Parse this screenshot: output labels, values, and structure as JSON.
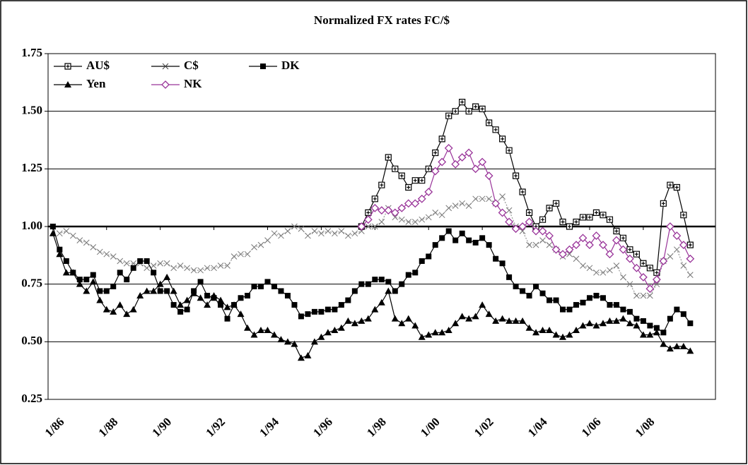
{
  "chart_data": {
    "type": "line",
    "title": "Normalized FX rates FC/$",
    "x": [
      1986,
      1986.25,
      1986.5,
      1986.75,
      1987,
      1987.25,
      1987.5,
      1987.75,
      1988,
      1988.25,
      1988.5,
      1988.75,
      1989,
      1989.25,
      1989.5,
      1989.75,
      1990,
      1990.25,
      1990.5,
      1990.75,
      1991,
      1991.25,
      1991.5,
      1991.75,
      1992,
      1992.25,
      1992.5,
      1992.75,
      1993,
      1993.25,
      1993.5,
      1993.75,
      1994,
      1994.25,
      1994.5,
      1994.75,
      1995,
      1995.25,
      1995.5,
      1995.75,
      1996,
      1996.25,
      1996.5,
      1996.75,
      1997,
      1997.25,
      1997.5,
      1997.75,
      1998,
      1998.25,
      1998.5,
      1998.75,
      1999,
      1999.25,
      1999.5,
      1999.75,
      2000,
      2000.25,
      2000.5,
      2000.75,
      2001,
      2001.25,
      2001.5,
      2001.75,
      2002,
      2002.25,
      2002.5,
      2002.75,
      2003,
      2003.25,
      2003.5,
      2003.75,
      2004,
      2004.25,
      2004.5,
      2004.75,
      2005,
      2005.25,
      2005.5,
      2005.75,
      2006,
      2006.25,
      2006.5,
      2006.75,
      2007,
      2007.25,
      2007.5,
      2007.75,
      2008,
      2008.25,
      2008.5,
      2008.75,
      2009,
      2009.25,
      2009.5,
      2009.75
    ],
    "series": [
      {
        "name": "C$",
        "color": "#444444",
        "marker": "x",
        "dash": "dotted",
        "values": [
          1.0,
          0.97,
          0.98,
          0.96,
          0.94,
          0.93,
          0.91,
          0.89,
          0.88,
          0.87,
          0.85,
          0.84,
          0.84,
          0.84,
          0.82,
          0.83,
          0.84,
          0.84,
          0.82,
          0.83,
          0.82,
          0.81,
          0.81,
          0.82,
          0.82,
          0.83,
          0.83,
          0.87,
          0.88,
          0.88,
          0.91,
          0.92,
          0.94,
          0.97,
          0.96,
          0.98,
          1.0,
          0.99,
          0.96,
          0.98,
          0.97,
          0.98,
          0.97,
          0.98,
          0.96,
          0.97,
          0.98,
          1.0,
          1.0,
          1.02,
          1.08,
          1.04,
          1.03,
          1.02,
          1.02,
          1.03,
          1.04,
          1.06,
          1.05,
          1.08,
          1.09,
          1.1,
          1.09,
          1.12,
          1.12,
          1.12,
          1.1,
          1.13,
          1.07,
          1.0,
          0.98,
          0.92,
          0.92,
          0.94,
          0.92,
          0.9,
          0.87,
          0.88,
          0.86,
          0.83,
          0.82,
          0.8,
          0.8,
          0.81,
          0.83,
          0.78,
          0.75,
          0.7,
          0.7,
          0.7,
          0.75,
          0.85,
          0.87,
          0.9,
          0.83,
          0.79
        ]
      },
      {
        "name": "AU$",
        "color": "#000000",
        "marker": "square-cross",
        "dash": "solid",
        "values": [
          null,
          null,
          null,
          null,
          null,
          null,
          null,
          null,
          null,
          null,
          null,
          null,
          null,
          null,
          null,
          null,
          null,
          null,
          null,
          null,
          null,
          null,
          null,
          null,
          null,
          null,
          null,
          null,
          null,
          null,
          null,
          null,
          null,
          null,
          null,
          null,
          null,
          null,
          null,
          null,
          null,
          null,
          null,
          null,
          null,
          null,
          1.0,
          1.06,
          1.12,
          1.18,
          1.3,
          1.25,
          1.22,
          1.17,
          1.2,
          1.2,
          1.25,
          1.32,
          1.38,
          1.48,
          1.5,
          1.54,
          1.5,
          1.52,
          1.51,
          1.45,
          1.42,
          1.38,
          1.33,
          1.22,
          1.15,
          1.06,
          1.0,
          1.03,
          1.08,
          1.1,
          1.02,
          1.0,
          1.02,
          1.04,
          1.04,
          1.06,
          1.05,
          1.03,
          0.98,
          0.95,
          0.9,
          0.88,
          0.84,
          0.82,
          0.8,
          1.1,
          1.18,
          1.17,
          1.05,
          0.92
        ]
      },
      {
        "name": "DK",
        "color": "#000000",
        "marker": "square",
        "dash": "solid",
        "values": [
          1.0,
          0.9,
          0.85,
          0.8,
          0.77,
          0.77,
          0.79,
          0.72,
          0.72,
          0.74,
          0.8,
          0.77,
          0.82,
          0.85,
          0.85,
          0.8,
          0.72,
          0.72,
          0.66,
          0.63,
          0.64,
          0.72,
          0.76,
          0.7,
          0.69,
          0.66,
          0.6,
          0.66,
          0.69,
          0.7,
          0.74,
          0.74,
          0.76,
          0.74,
          0.72,
          0.7,
          0.66,
          0.61,
          0.62,
          0.63,
          0.63,
          0.64,
          0.64,
          0.66,
          0.68,
          0.72,
          0.75,
          0.75,
          0.77,
          0.77,
          0.76,
          0.72,
          0.75,
          0.79,
          0.8,
          0.85,
          0.87,
          0.92,
          0.95,
          0.98,
          0.94,
          0.97,
          0.94,
          0.93,
          0.95,
          0.92,
          0.86,
          0.84,
          0.78,
          0.74,
          0.72,
          0.7,
          0.74,
          0.71,
          0.68,
          0.68,
          0.64,
          0.64,
          0.66,
          0.67,
          0.69,
          0.7,
          0.69,
          0.66,
          0.66,
          0.64,
          0.63,
          0.6,
          0.59,
          0.57,
          0.56,
          0.54,
          0.6,
          0.64,
          0.62,
          0.58
        ]
      },
      {
        "name": "Yen",
        "color": "#000000",
        "marker": "triangle",
        "dash": "solid",
        "values": [
          0.97,
          0.88,
          0.8,
          0.8,
          0.75,
          0.72,
          0.76,
          0.68,
          0.64,
          0.63,
          0.66,
          0.62,
          0.64,
          0.7,
          0.72,
          0.72,
          0.75,
          0.78,
          0.72,
          0.66,
          0.68,
          0.71,
          0.69,
          0.66,
          0.7,
          0.68,
          0.65,
          0.66,
          0.62,
          0.56,
          0.53,
          0.55,
          0.55,
          0.53,
          0.51,
          0.5,
          0.49,
          0.43,
          0.44,
          0.5,
          0.52,
          0.54,
          0.55,
          0.56,
          0.59,
          0.58,
          0.59,
          0.6,
          0.64,
          0.67,
          0.72,
          0.6,
          0.58,
          0.6,
          0.57,
          0.52,
          0.53,
          0.54,
          0.54,
          0.55,
          0.58,
          0.61,
          0.6,
          0.61,
          0.66,
          0.62,
          0.59,
          0.6,
          0.59,
          0.59,
          0.59,
          0.56,
          0.54,
          0.55,
          0.55,
          0.53,
          0.52,
          0.53,
          0.55,
          0.57,
          0.58,
          0.57,
          0.58,
          0.59,
          0.59,
          0.6,
          0.58,
          0.57,
          0.53,
          0.53,
          0.54,
          0.49,
          0.47,
          0.48,
          0.48,
          0.46
        ]
      },
      {
        "name": "NK",
        "color": "#993399",
        "marker": "diamond",
        "dash": "solid",
        "values": [
          null,
          null,
          null,
          null,
          null,
          null,
          null,
          null,
          null,
          null,
          null,
          null,
          null,
          null,
          null,
          null,
          null,
          null,
          null,
          null,
          null,
          null,
          null,
          null,
          null,
          null,
          null,
          null,
          null,
          null,
          null,
          null,
          null,
          null,
          null,
          null,
          null,
          null,
          null,
          null,
          null,
          null,
          null,
          null,
          null,
          null,
          1.0,
          1.03,
          1.08,
          1.07,
          1.07,
          1.06,
          1.08,
          1.1,
          1.1,
          1.12,
          1.15,
          1.24,
          1.28,
          1.34,
          1.27,
          1.3,
          1.32,
          1.25,
          1.28,
          1.22,
          1.1,
          1.06,
          1.02,
          0.99,
          1.0,
          1.02,
          0.98,
          0.98,
          0.96,
          0.9,
          0.88,
          0.9,
          0.92,
          0.95,
          0.92,
          0.96,
          0.92,
          0.88,
          0.94,
          0.9,
          0.86,
          0.82,
          0.78,
          0.73,
          0.77,
          0.85,
          1.0,
          0.96,
          0.92,
          0.86
        ]
      }
    ],
    "legend_order": [
      "AU$",
      "C$",
      "DK",
      "Yen",
      "NK"
    ],
    "legend": "upper left",
    "xlim": [
      1985.82,
      2010.69
    ],
    "xticks": [
      {
        "value": 1986,
        "label": "1/86"
      },
      {
        "value": 1988,
        "label": "1/88"
      },
      {
        "value": 1990,
        "label": "1/90"
      },
      {
        "value": 1992,
        "label": "1/92"
      },
      {
        "value": 1994,
        "label": "1/94"
      },
      {
        "value": 1996,
        "label": "1/96"
      },
      {
        "value": 1998,
        "label": "1/98"
      },
      {
        "value": 2000,
        "label": "1/00"
      },
      {
        "value": 2002,
        "label": "1/02"
      },
      {
        "value": 2004,
        "label": "1/04"
      },
      {
        "value": 2006,
        "label": "1/06"
      },
      {
        "value": 2008,
        "label": "1/08"
      }
    ],
    "ylim": [
      0.25,
      1.75
    ],
    "yticks": [
      {
        "value": 0.25,
        "label": "0.25"
      },
      {
        "value": 0.5,
        "label": "0.50"
      },
      {
        "value": 0.75,
        "label": "0.75"
      },
      {
        "value": 1,
        "label": "1.00"
      },
      {
        "value": 1.25,
        "label": "1.25"
      },
      {
        "value": 1.5,
        "label": "1.50"
      },
      {
        "value": 1.75,
        "label": "1.75"
      }
    ],
    "x_axis_at": 1,
    "grid": true
  }
}
